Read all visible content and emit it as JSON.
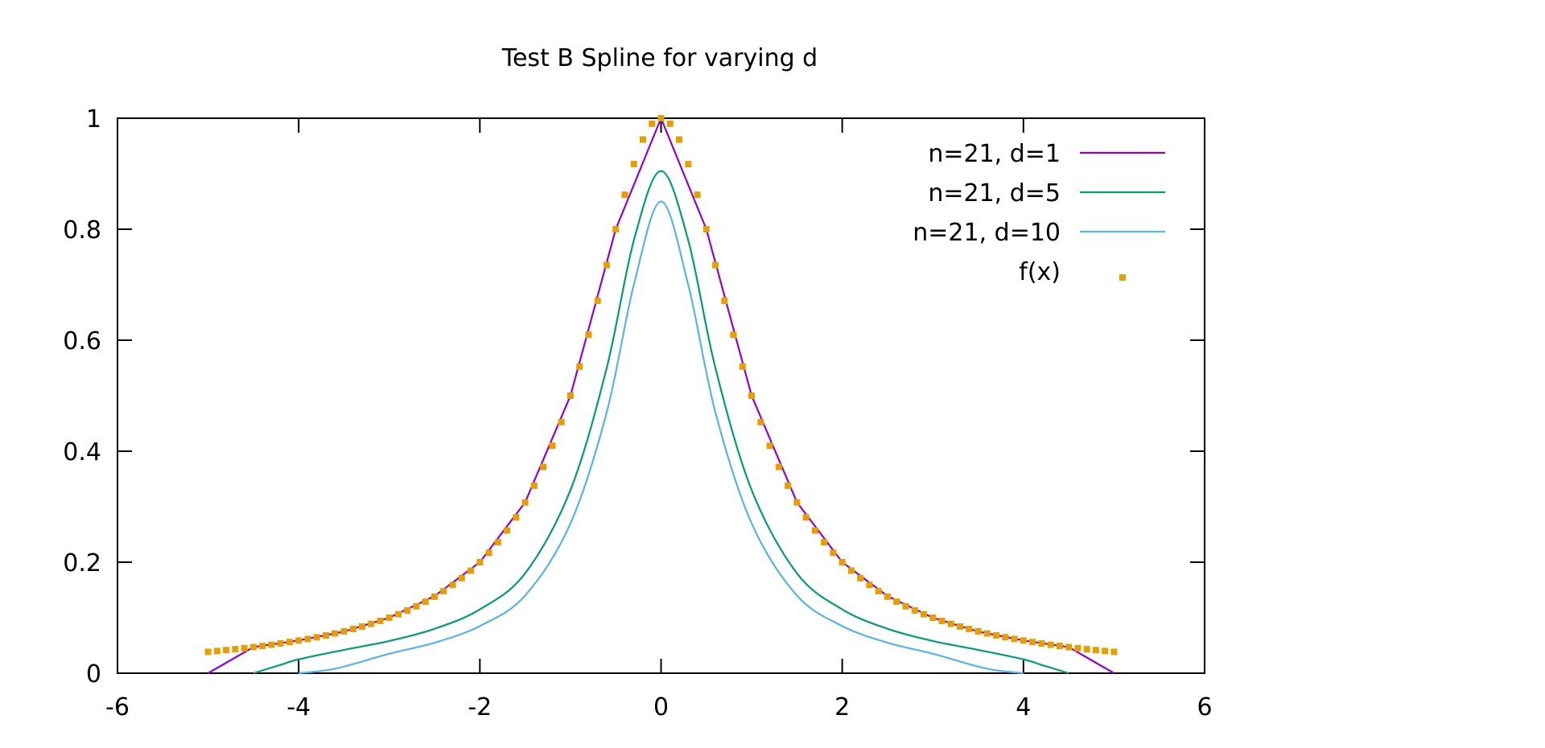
{
  "chart_data": {
    "type": "line",
    "title": "Test B Spline for varying d",
    "xlabel": "",
    "ylabel": "",
    "xlim": [
      -6,
      6
    ],
    "ylim": [
      0,
      1
    ],
    "x_ticks": [
      "-6",
      "-4",
      "-2",
      "0",
      "2",
      "4",
      "6"
    ],
    "y_ticks": [
      "0",
      "0.2",
      "0.4",
      "0.6",
      "0.8",
      "1"
    ],
    "grid": false,
    "legend_position": "top-right",
    "series": [
      {
        "name": "n=21, d=1",
        "color": "#9400d3",
        "style": "line",
        "points": [
          [
            -5.0,
            0.0
          ],
          [
            -4.5,
            0.047
          ],
          [
            -4.0,
            0.059
          ],
          [
            -3.5,
            0.075
          ],
          [
            -3.0,
            0.1
          ],
          [
            -2.5,
            0.139
          ],
          [
            -2.0,
            0.2
          ],
          [
            -1.5,
            0.308
          ],
          [
            -1.0,
            0.5
          ],
          [
            -0.5,
            0.8
          ],
          [
            0.0,
            1.0
          ],
          [
            0.5,
            0.8
          ],
          [
            1.0,
            0.5
          ],
          [
            1.5,
            0.308
          ],
          [
            2.0,
            0.2
          ],
          [
            2.5,
            0.139
          ],
          [
            3.0,
            0.1
          ],
          [
            3.5,
            0.075
          ],
          [
            4.0,
            0.059
          ],
          [
            4.5,
            0.047
          ],
          [
            5.0,
            0.0
          ]
        ]
      },
      {
        "name": "n=21, d=5",
        "color": "#009e73",
        "style": "line",
        "points": [
          [
            -4.5,
            0.0
          ],
          [
            -4.2,
            0.015
          ],
          [
            -4.0,
            0.025
          ],
          [
            -3.5,
            0.042
          ],
          [
            -3.0,
            0.058
          ],
          [
            -2.5,
            0.08
          ],
          [
            -2.0,
            0.115
          ],
          [
            -1.5,
            0.18
          ],
          [
            -1.0,
            0.33
          ],
          [
            -0.6,
            0.55
          ],
          [
            -0.3,
            0.78
          ],
          [
            0.0,
            0.905
          ],
          [
            0.3,
            0.78
          ],
          [
            0.6,
            0.55
          ],
          [
            1.0,
            0.33
          ],
          [
            1.5,
            0.18
          ],
          [
            2.0,
            0.115
          ],
          [
            2.5,
            0.08
          ],
          [
            3.0,
            0.058
          ],
          [
            3.5,
            0.042
          ],
          [
            4.0,
            0.025
          ],
          [
            4.2,
            0.015
          ],
          [
            4.5,
            0.0
          ]
        ]
      },
      {
        "name": "n=21, d=10",
        "color": "#56b4e9",
        "style": "line",
        "points": [
          [
            -4.0,
            0.0
          ],
          [
            -3.6,
            0.008
          ],
          [
            -3.0,
            0.035
          ],
          [
            -2.5,
            0.055
          ],
          [
            -2.0,
            0.085
          ],
          [
            -1.5,
            0.14
          ],
          [
            -1.0,
            0.27
          ],
          [
            -0.6,
            0.47
          ],
          [
            -0.3,
            0.7
          ],
          [
            0.0,
            0.85
          ],
          [
            0.3,
            0.7
          ],
          [
            0.6,
            0.47
          ],
          [
            1.0,
            0.27
          ],
          [
            1.5,
            0.14
          ],
          [
            2.0,
            0.085
          ],
          [
            2.5,
            0.055
          ],
          [
            3.0,
            0.035
          ],
          [
            3.6,
            0.008
          ],
          [
            4.0,
            0.0
          ]
        ]
      },
      {
        "name": "f(x)",
        "color": "#e69f00",
        "style": "points",
        "function": "1/(1+x^2)",
        "x_range": [
          -5,
          5
        ],
        "x_step": 0.1
      }
    ]
  }
}
